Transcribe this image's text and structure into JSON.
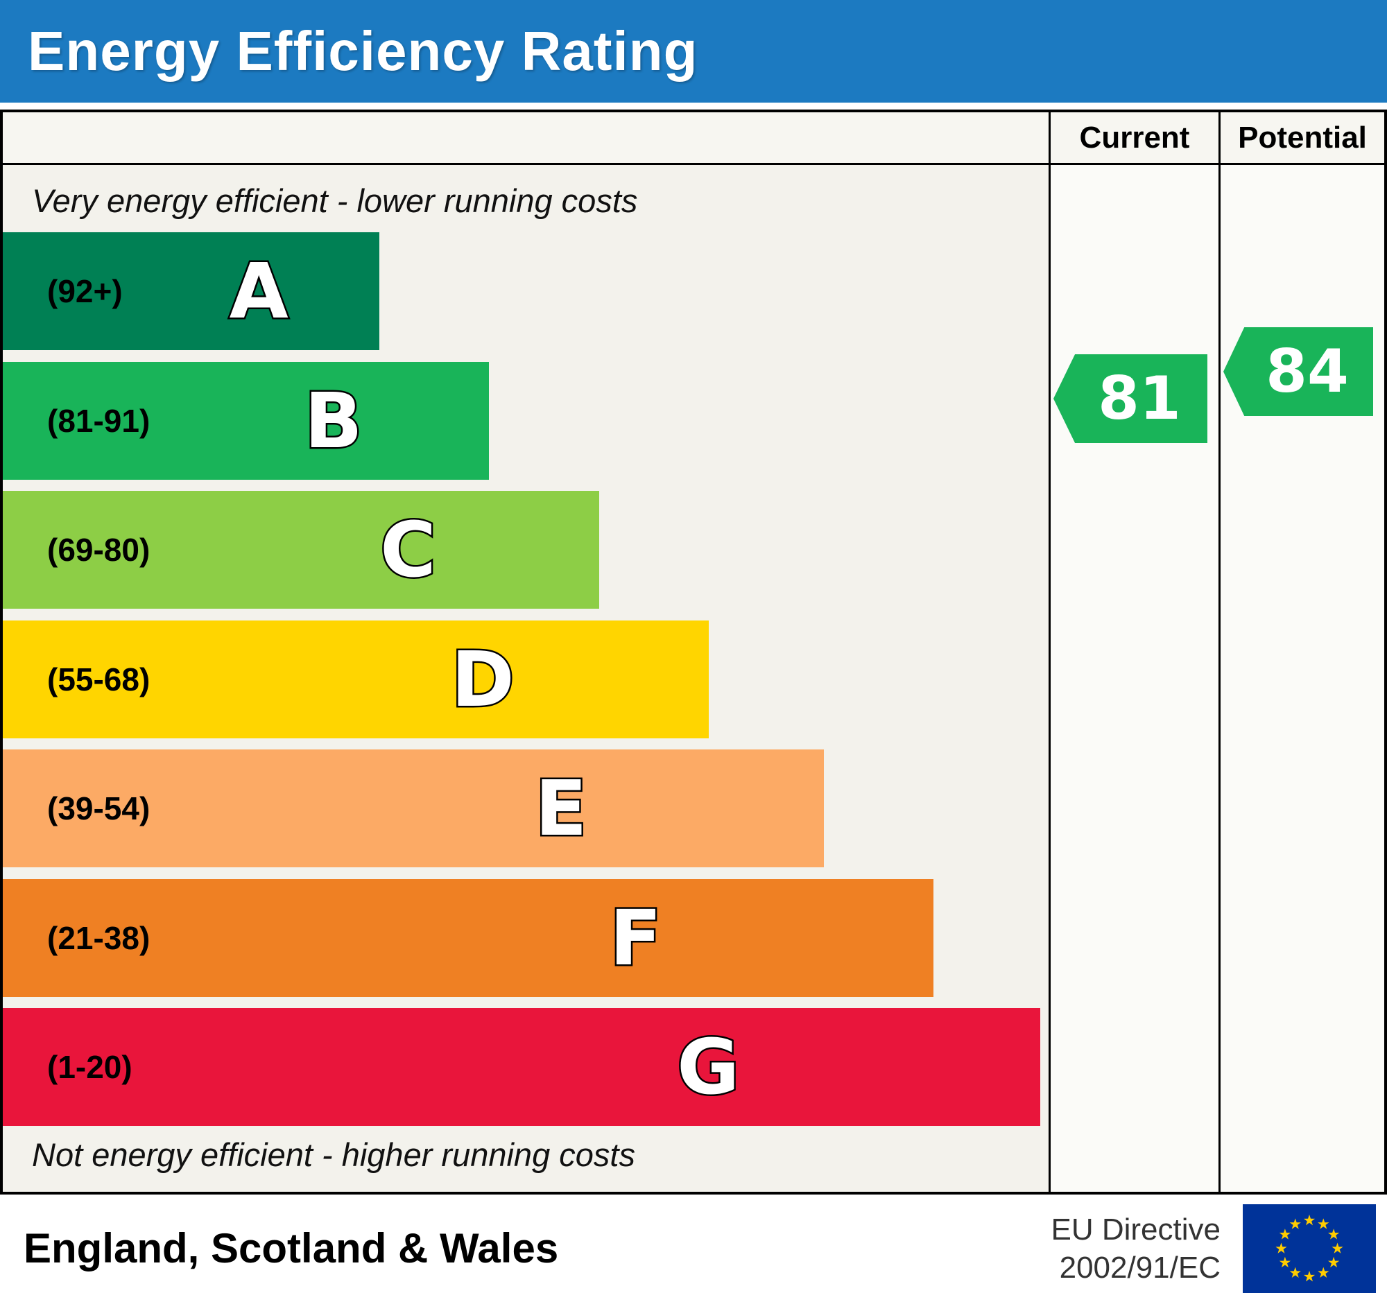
{
  "header": {
    "title": "Energy Efficiency Rating",
    "bg_color": "#1c7ac1"
  },
  "columns": {
    "current_label": "Current",
    "potential_label": "Potential"
  },
  "notes": {
    "top": "Very energy efficient - lower running costs",
    "bottom": "Not energy efficient - higher running costs"
  },
  "footer": {
    "region": "England, Scotland & Wales",
    "directive_line1": "EU Directive",
    "directive_line2": "2002/91/EC",
    "flag": {
      "name": "eu-flag-icon",
      "bg": "#003399",
      "star_color": "#ffcc00"
    }
  },
  "chart_data": {
    "type": "bar",
    "subtype": "epc-energy-efficiency-rating",
    "title": "Energy Efficiency Rating",
    "value_scale": [
      1,
      100
    ],
    "bands": [
      {
        "letter": "A",
        "range_label": "(92+)",
        "range": [
          92,
          100
        ],
        "color": "#008054",
        "width_pct": 36
      },
      {
        "letter": "B",
        "range_label": "(81-91)",
        "range": [
          81,
          91
        ],
        "color": "#19b459",
        "width_pct": 46.5
      },
      {
        "letter": "C",
        "range_label": "(69-80)",
        "range": [
          69,
          80
        ],
        "color": "#8dce46",
        "width_pct": 57
      },
      {
        "letter": "D",
        "range_label": "(55-68)",
        "range": [
          55,
          68
        ],
        "color": "#ffd500",
        "width_pct": 67.5
      },
      {
        "letter": "E",
        "range_label": "(39-54)",
        "range": [
          39,
          54
        ],
        "color": "#fcaa65",
        "width_pct": 78.5
      },
      {
        "letter": "F",
        "range_label": "(21-38)",
        "range": [
          21,
          38
        ],
        "color": "#ef8023",
        "width_pct": 89
      },
      {
        "letter": "G",
        "range_label": "(1-20)",
        "range": [
          1,
          20
        ],
        "color": "#e9153b",
        "width_pct": 99.2
      }
    ],
    "markers": {
      "current": {
        "label": "Current",
        "value": 81,
        "color": "#19b459"
      },
      "potential": {
        "label": "Potential",
        "value": 84,
        "color": "#19b459"
      }
    }
  }
}
